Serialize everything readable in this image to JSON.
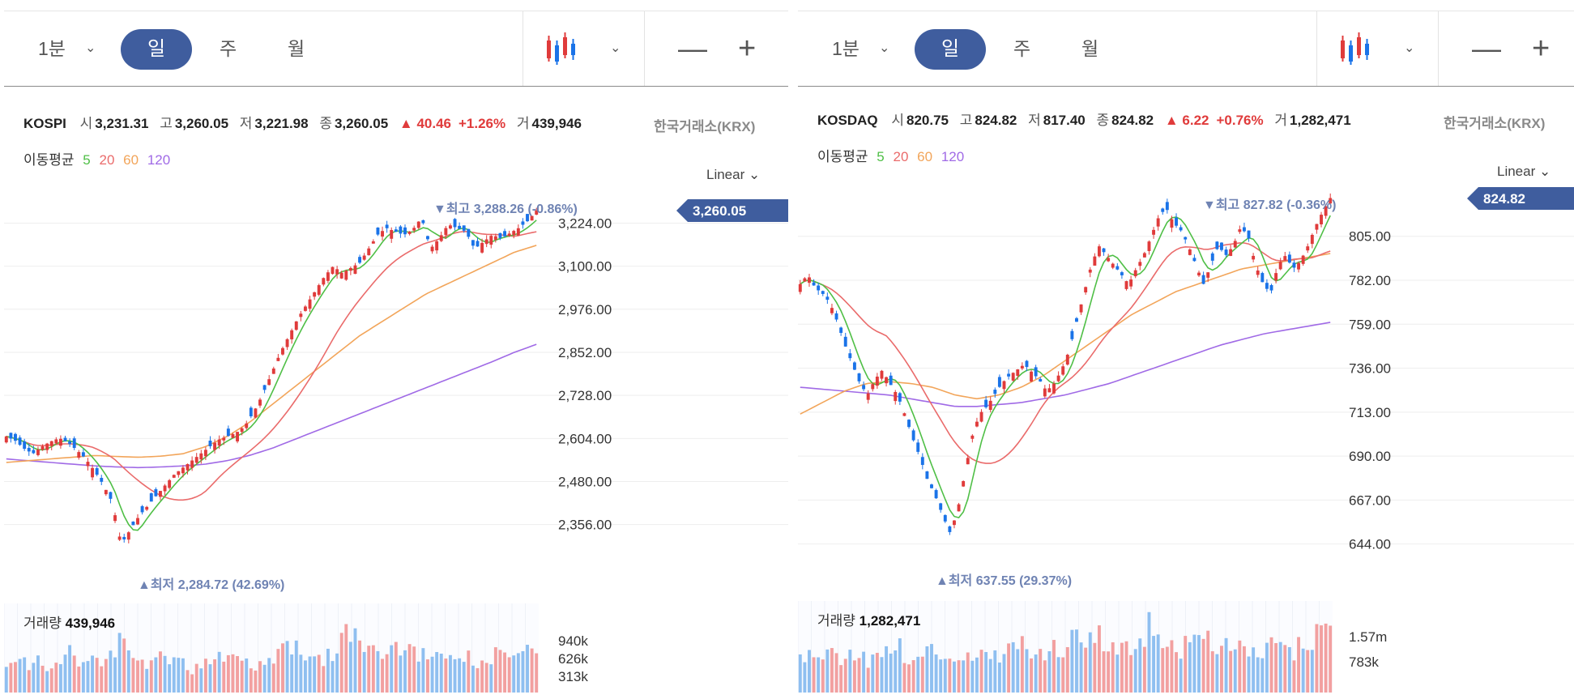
{
  "toolbar": {
    "interval": "1분",
    "tabs": [
      "일",
      "주",
      "월"
    ],
    "selected_tab": "일",
    "minus_label": "—",
    "plus_label": "+"
  },
  "colors": {
    "up": "#e03b3b",
    "down": "#1a73e8",
    "ma5": "#4fbf46",
    "ma20": "#ea6b6b",
    "ma60": "#f2a55a",
    "ma120": "#a06ae6",
    "accent": "#3f5d9e",
    "vol_up": "#f2a0a0",
    "vol_down": "#8fbff0"
  },
  "ma_label": "이동평균",
  "ma_periods": [
    "5",
    "20",
    "60",
    "120"
  ],
  "scale_label": "Linear",
  "exchange": "한국거래소(KRX)",
  "volume_label": "거래량",
  "panels": [
    {
      "name": "KOSPI",
      "open_label": "시",
      "open": "3,231.31",
      "high_label": "고",
      "high": "3,260.05",
      "low_label": "저",
      "low": "3,221.98",
      "close_label": "종",
      "close": "3,260.05",
      "change": "▲ 40.46",
      "change_pct": "+1.26%",
      "vol_label": "거",
      "volume": "439,946",
      "current_price": "3,260.05",
      "max_label": "▼최고",
      "max_value": "3,288.26 (-0.86%)",
      "min_label": "▲최저",
      "min_value": "2,284.72 (42.69%)"
    },
    {
      "name": "KOSDAQ",
      "open_label": "시",
      "open": "820.75",
      "high_label": "고",
      "high": "824.82",
      "low_label": "저",
      "low": "817.40",
      "close_label": "종",
      "close": "824.82",
      "change": "▲ 6.22",
      "change_pct": "+0.76%",
      "vol_label": "거",
      "volume": "1,282,471",
      "current_price": "824.82",
      "max_label": "▼최고",
      "max_value": "827.82 (-0.36%)",
      "min_label": "▲최저",
      "min_value": "637.55 (29.37%)"
    }
  ],
  "chart_data": [
    {
      "type": "candlestick",
      "title": "KOSPI",
      "y_ticks": [
        "2,356.00",
        "2,480.00",
        "2,604.00",
        "2,728.00",
        "2,852.00",
        "2,976.00",
        "3,100.00",
        "3,224.00"
      ],
      "ylim": [
        2234,
        3330
      ],
      "close_path": [
        2610,
        2598,
        2575,
        2560,
        2580,
        2595,
        2605,
        2592,
        2570,
        2545,
        2510,
        2470,
        2420,
        2300,
        2340,
        2380,
        2410,
        2440,
        2470,
        2500,
        2520,
        2540,
        2560,
        2580,
        2600,
        2610,
        2620,
        2640,
        2680,
        2730,
        2790,
        2850,
        2900,
        2950,
        2990,
        3030,
        3070,
        3100,
        3080,
        3095,
        3110,
        3150,
        3190,
        3210,
        3200,
        3190,
        3205,
        3240,
        3150,
        3180,
        3220,
        3210,
        3200,
        3150,
        3170,
        3190,
        3180,
        3195,
        3210,
        3230,
        3260
      ],
      "ma120_path": [
        2545,
        2540,
        2535,
        2530,
        2525,
        2522,
        2520,
        2522,
        2525,
        2530,
        2540,
        2555,
        2575,
        2600,
        2625,
        2650,
        2675,
        2700,
        2725,
        2750,
        2775,
        2800,
        2825,
        2852,
        2875
      ],
      "ma60_path": [
        2535,
        2540,
        2545,
        2550,
        2555,
        2552,
        2550,
        2553,
        2560,
        2580,
        2610,
        2650,
        2700,
        2750,
        2800,
        2850,
        2900,
        2940,
        2980,
        3020,
        3050,
        3080,
        3110,
        3140,
        3160
      ],
      "volume_ticks": [
        "940k",
        "626k",
        "313k"
      ],
      "volumes": [
        0.35,
        0.5,
        0.4,
        0.45,
        0.55,
        0.3,
        0.5,
        0.6,
        0.4,
        0.45,
        0.5,
        0.35,
        0.6,
        0.7,
        0.5,
        0.4,
        0.45,
        0.55,
        0.6,
        0.5,
        0.4,
        0.35,
        0.45,
        0.5,
        0.55,
        0.6,
        0.5,
        0.45,
        0.4,
        0.5,
        0.55,
        0.6,
        0.65,
        0.7,
        0.6,
        0.55,
        0.5,
        0.6,
        0.75,
        0.9,
        0.8,
        0.6,
        0.55,
        0.5,
        0.6,
        0.7,
        0.65,
        0.55,
        0.5,
        0.45,
        0.6,
        0.55,
        0.5,
        0.45,
        0.5,
        0.55,
        0.6,
        0.5,
        0.45,
        0.55,
        0.65
      ]
    },
    {
      "type": "candlestick",
      "title": "KOSDAQ",
      "y_ticks": [
        "644.00",
        "667.00",
        "690.00",
        "713.00",
        "736.00",
        "759.00",
        "782.00",
        "805.00"
      ],
      "ylim": [
        632,
        832
      ],
      "close_path": [
        780,
        785,
        778,
        775,
        770,
        760,
        748,
        738,
        728,
        722,
        730,
        735,
        728,
        722,
        712,
        700,
        690,
        678,
        670,
        660,
        650,
        660,
        680,
        700,
        712,
        716,
        722,
        728,
        732,
        735,
        738,
        734,
        730,
        724,
        728,
        735,
        745,
        760,
        775,
        790,
        800,
        795,
        790,
        785,
        780,
        788,
        795,
        805,
        815,
        820,
        812,
        808,
        800,
        790,
        780,
        790,
        800,
        795,
        800,
        810,
        805,
        790,
        780,
        775,
        790,
        795,
        788,
        792,
        800,
        810,
        818,
        825
      ],
      "ma120_path": [
        726,
        725,
        724,
        723,
        722,
        720,
        718,
        716,
        716,
        717,
        718,
        720,
        722,
        725,
        728,
        732,
        736,
        740,
        744,
        748,
        751,
        754,
        756,
        758,
        760
      ],
      "ma60_path": [
        712,
        718,
        724,
        728,
        729,
        728,
        726,
        722,
        720,
        722,
        726,
        732,
        740,
        748,
        756,
        764,
        770,
        776,
        780,
        784,
        788,
        790,
        792,
        794,
        796
      ],
      "volume_ticks": [
        "1.57m",
        "783k"
      ],
      "volumes": [
        0.45,
        0.5,
        0.4,
        0.45,
        0.55,
        0.5,
        0.45,
        0.6,
        0.5,
        0.45,
        0.5,
        0.55,
        0.6,
        0.7,
        0.5,
        0.45,
        0.5,
        0.55,
        0.6,
        0.5,
        0.55,
        0.5,
        0.45,
        0.5,
        0.55,
        0.6,
        0.5,
        0.55,
        0.6,
        0.7,
        0.65,
        0.6,
        0.55,
        0.5,
        0.6,
        0.65,
        0.7,
        0.75,
        0.8,
        0.9,
        0.8,
        0.7,
        0.65,
        0.6,
        0.65,
        0.7,
        0.8,
        0.95,
        0.8,
        0.7,
        0.65,
        0.6,
        0.65,
        0.7,
        0.75,
        0.7,
        0.6,
        0.65,
        0.7,
        0.6,
        0.55,
        0.6,
        0.65,
        0.7,
        0.6,
        0.55,
        0.6,
        0.65,
        0.7,
        0.75,
        0.8,
        0.75
      ]
    }
  ]
}
